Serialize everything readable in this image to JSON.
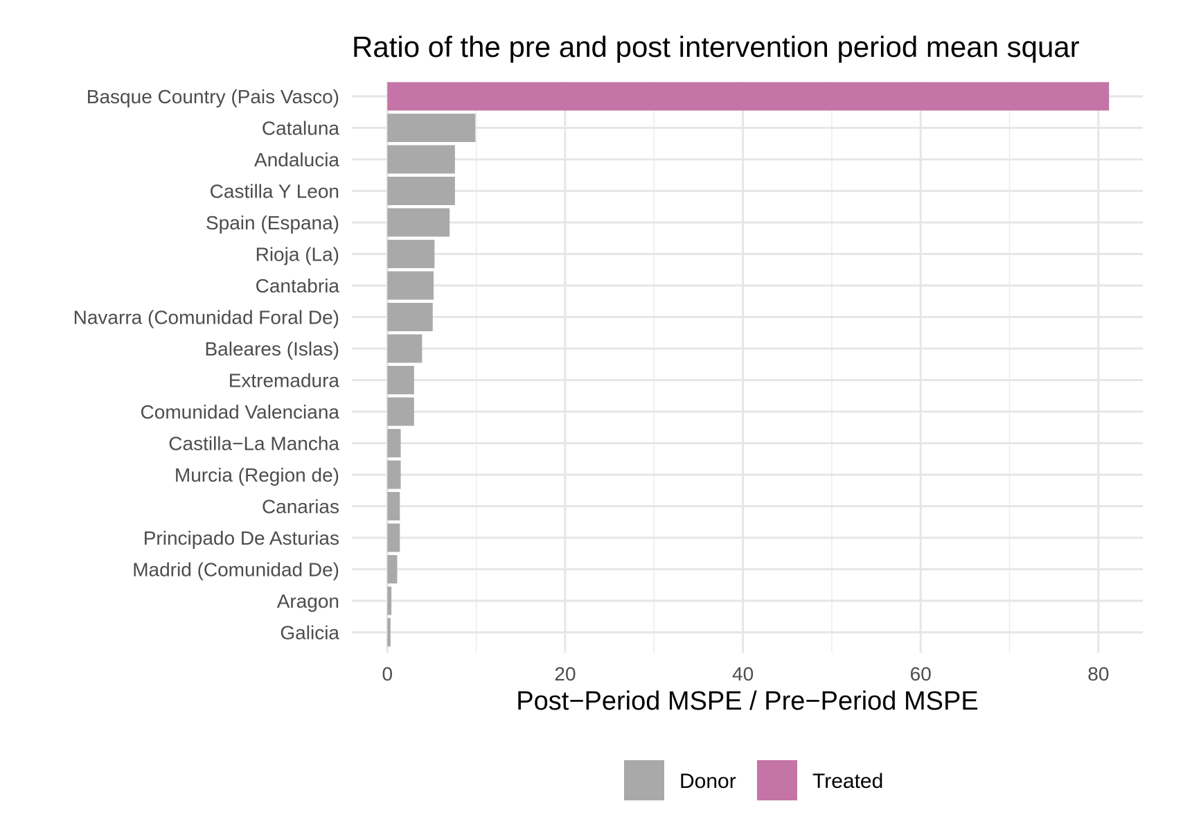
{
  "chart_data": {
    "type": "bar",
    "orientation": "horizontal",
    "title": "Ratio of the pre and post intervention period mean squar",
    "xlabel": "Post−Period MSPE / Pre−Period MSPE",
    "ylabel": "",
    "xlim": [
      -4,
      85
    ],
    "x_ticks": [
      0,
      20,
      40,
      60,
      80
    ],
    "grid": true,
    "legend_position": "bottom",
    "legend": [
      {
        "name": "Donor",
        "color": "#a9a9a9"
      },
      {
        "name": "Treated",
        "color": "#c474a6"
      }
    ],
    "categories": [
      "Basque Country (Pais Vasco)",
      "Cataluna",
      "Andalucia",
      "Castilla Y Leon",
      "Spain (Espana)",
      "Rioja (La)",
      "Cantabria",
      "Navarra (Comunidad Foral De)",
      "Baleares (Islas)",
      "Extremadura",
      "Comunidad Valenciana",
      "Castilla−La Mancha",
      "Murcia (Region de)",
      "Canarias",
      "Principado De Asturias",
      "Madrid (Comunidad De)",
      "Aragon",
      "Galicia"
    ],
    "values": [
      81.2,
      9.9,
      7.6,
      7.6,
      7.0,
      5.3,
      5.2,
      5.1,
      3.9,
      3.0,
      3.0,
      1.5,
      1.5,
      1.4,
      1.4,
      1.1,
      0.45,
      0.35
    ],
    "groups": [
      "Treated",
      "Donor",
      "Donor",
      "Donor",
      "Donor",
      "Donor",
      "Donor",
      "Donor",
      "Donor",
      "Donor",
      "Donor",
      "Donor",
      "Donor",
      "Donor",
      "Donor",
      "Donor",
      "Donor",
      "Donor"
    ]
  }
}
